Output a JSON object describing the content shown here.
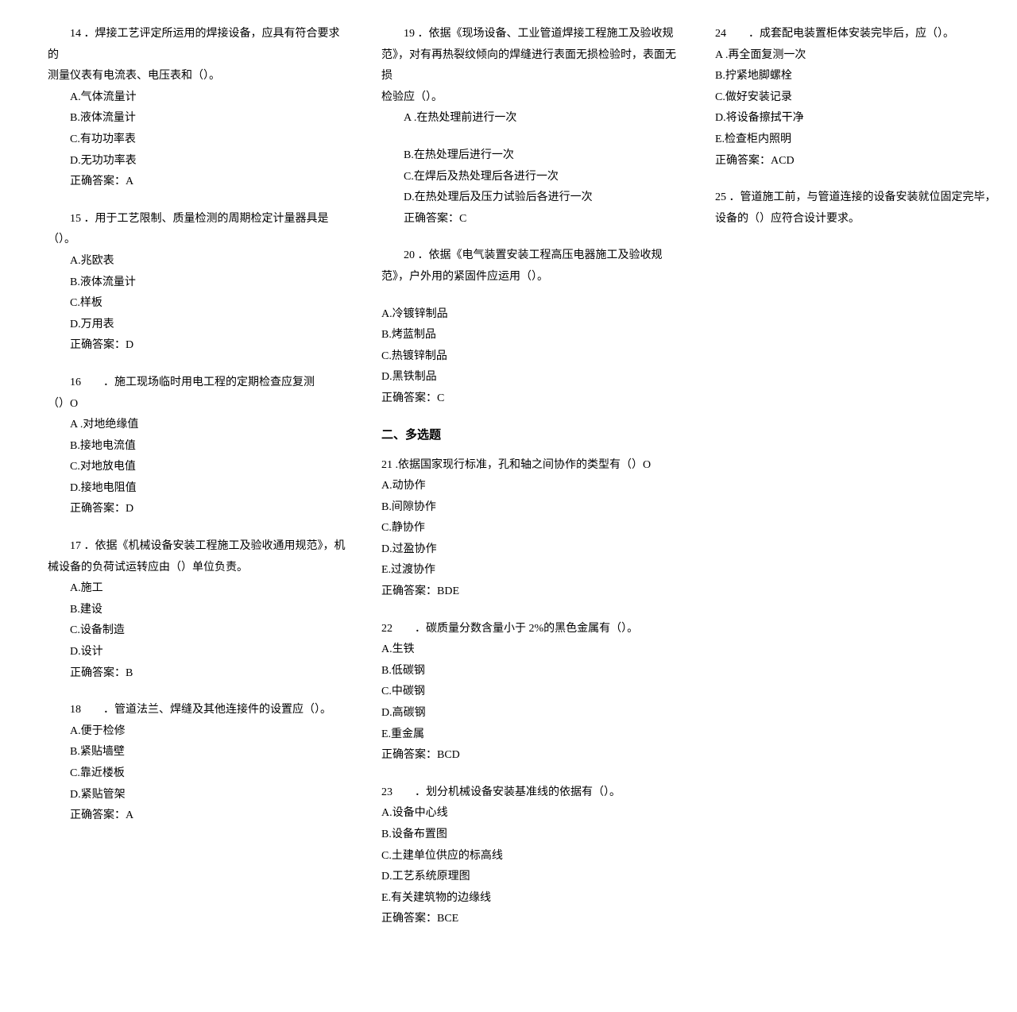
{
  "left": {
    "q14": {
      "stem1": "14 ．焊接工艺评定所运用的焊接设备，应具有符合要求的",
      "stem2": "测量仪表有电流表、电压表和（）。",
      "a": "A.气体流量计",
      "b": "B.液体流量计",
      "c": "C.有功功率表",
      "d": "D.无功功率表",
      "ans": "正确答案：A"
    },
    "q15": {
      "stem": "15 ．用于工艺限制、质量检测的周期检定计量器具是（）。",
      "a": "A.兆欧表",
      "b": "B.液体流量计",
      "c": "C.样板",
      "d": "D.万用表",
      "ans": "正确答案：D"
    },
    "q16": {
      "stem1": "16　　．施工现场临时用电工程的定期检查应复测",
      "stem2": "（）O",
      "a": "A .对地绝缘值",
      "b": "B.接地电流值",
      "c": "C.对地放电值",
      "d": "D.接地电阻值",
      "ans": "正确答案：D"
    },
    "q17": {
      "stem1": "17 ．依据《机械设备安装工程施工及验收通用规范》，机",
      "stem2": "械设备的负荷试运转应由（）单位负责。",
      "a": "A.施工",
      "b": "B.建设",
      "c": "C.设备制造",
      "d": "D.设计",
      "ans": "正确答案：B"
    },
    "q18": {
      "stem": "18　　．管道法兰、焊缝及其他连接件的设置应（）。",
      "a": "A.便于检修",
      "b": "B.紧贴墙壁",
      "c": "C.靠近楼板",
      "d": "D.紧贴管架",
      "ans": "正确答案：A"
    },
    "q19": {
      "stem1": "19 ．依据《现场设备、工业管道焊接工程施工及验收规",
      "stem2": "范》，对有再热裂纹倾向的焊缝进行表面无损检验时，表面无损",
      "stem3": "检验应（）。",
      "a": "A .在热处理前进行一次",
      "b": "B.在热处理后进行一次",
      "c": "C.在焊后及热处理后各进行一次",
      "d": "D.在热处理后及压力试验后各进行一次",
      "ans": "正确答案：C"
    },
    "q20": {
      "stem1": "20 ．依据《电气装置安装工程高压电器施工及验收规",
      "stem2": "范》，户外用的紧固件应运用（）。"
    }
  },
  "right": {
    "q20opts": {
      "a": "A.冷镀锌制品",
      "b": "B.烤蓝制品",
      "c": "C.热镀锌制品",
      "d": "D.黑铁制品",
      "ans": "正确答案：C"
    },
    "section2": "二、多选题",
    "q21": {
      "stem": "21 .依据国家现行标准，孔和轴之间协作的类型有（）O",
      "a": "A.动协作",
      "b": "B.间隙协作",
      "c": "C.静协作",
      "d": "D.过盈协作",
      "e": "E.过渡协作",
      "ans": "正确答案：BDE"
    },
    "q22": {
      "stem": "22　　．碳质量分数含量小于 2%的黑色金属有（）。",
      "a": "A.生铁",
      "b": "B.低碳钢",
      "c": "C.中碳钢",
      "d": "D.高碳钢",
      "e": "E.重金属",
      "ans": "正确答案：BCD"
    },
    "q23": {
      "stem": "23　　．划分机械设备安装基准线的依据有（）。",
      "a": "A.设备中心线",
      "b": "B.设备布置图",
      "c": "C.土建单位供应的标高线",
      "d": "D.工艺系统原理图",
      "e": "E.有关建筑物的边缘线",
      "ans": "正确答案：BCE"
    },
    "q24": {
      "stem": "24　　．成套配电装置柜体安装完毕后，应（）。",
      "a": "A .再全面复测一次",
      "b": "B.拧紧地脚螺栓",
      "c": "C.做好安装记录",
      "d": "D.将设备擦拭干净",
      "e": "E.检查柜内照明",
      "ans": "正确答案：ACD"
    },
    "q25": {
      "stem1": "25 ．管道施工前，与管道连接的设备安装就位固定完毕，",
      "stem2": "设备的（）应符合设计要求。"
    }
  }
}
